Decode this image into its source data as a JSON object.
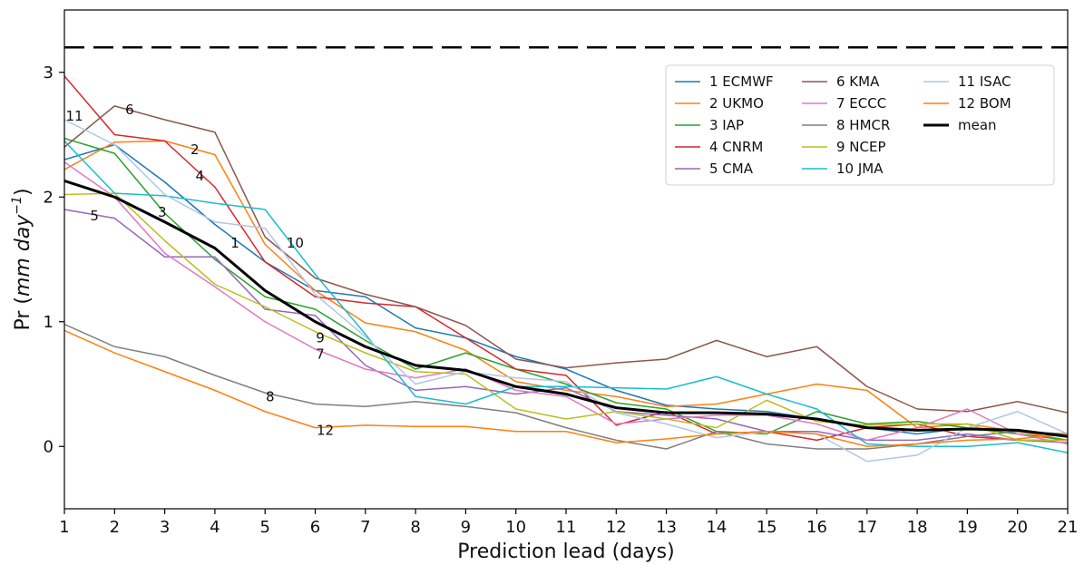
{
  "chart_data": {
    "type": "line",
    "xlabel": "Prediction lead (days)",
    "ylabel_prefix": "Pr (",
    "ylabel_unit_mm": "mm",
    "ylabel_unit_day": "day",
    "ylabel_exponent": "−1",
    "ylabel_suffix": ")",
    "xlim": [
      1,
      21
    ],
    "ylim": [
      -0.5,
      3.5
    ],
    "xticks": [
      1,
      2,
      3,
      4,
      5,
      6,
      7,
      8,
      9,
      10,
      11,
      12,
      13,
      14,
      15,
      16,
      17,
      18,
      19,
      20,
      21
    ],
    "yticks": [
      0,
      1,
      2,
      3
    ],
    "grid": false,
    "legend_position": "top-right",
    "reference_line": {
      "y": 3.2,
      "style": "dashed",
      "color": "#000000"
    },
    "x": [
      1,
      2,
      3,
      4,
      5,
      6,
      7,
      8,
      9,
      10,
      11,
      12,
      13,
      14,
      15,
      16,
      17,
      18,
      19,
      20,
      21
    ],
    "series": [
      {
        "name": "1 ECMWF",
        "label": "1",
        "color": "#1f77b4",
        "values": [
          2.3,
          2.42,
          2.12,
          1.78,
          1.48,
          1.25,
          1.2,
          0.95,
          0.87,
          0.72,
          0.62,
          0.45,
          0.33,
          0.3,
          0.28,
          0.22,
          0.15,
          0.1,
          0.15,
          0.12,
          0.05
        ]
      },
      {
        "name": "2 UKMO",
        "label": "2",
        "color": "#ff7f0e",
        "values": [
          2.22,
          2.44,
          2.45,
          2.34,
          1.62,
          1.25,
          0.99,
          0.92,
          0.77,
          0.52,
          0.45,
          0.4,
          0.32,
          0.34,
          0.42,
          0.5,
          0.45,
          0.15,
          0.18,
          0.12,
          0.05
        ]
      },
      {
        "name": "3 IAP",
        "label": "3",
        "color": "#2ca02c",
        "values": [
          2.47,
          2.35,
          1.87,
          1.5,
          1.2,
          1.1,
          0.85,
          0.62,
          0.75,
          0.62,
          0.5,
          0.35,
          0.3,
          0.12,
          0.1,
          0.28,
          0.18,
          0.2,
          0.15,
          0.1,
          0.05
        ]
      },
      {
        "name": "4 CNRM",
        "label": "4",
        "color": "#d62728",
        "values": [
          2.97,
          2.5,
          2.45,
          2.08,
          1.48,
          1.2,
          1.15,
          1.12,
          0.87,
          0.62,
          0.57,
          0.17,
          0.28,
          0.1,
          0.12,
          0.05,
          0.15,
          0.18,
          0.08,
          0.05,
          0.05
        ]
      },
      {
        "name": "5 CMA",
        "label": "5",
        "color": "#9467bd",
        "values": [
          1.9,
          1.83,
          1.52,
          1.52,
          1.1,
          1.05,
          0.65,
          0.45,
          0.48,
          0.42,
          0.47,
          0.28,
          0.25,
          0.22,
          0.12,
          0.12,
          0.05,
          0.05,
          0.1,
          0.05,
          0.03
        ]
      },
      {
        "name": "6 KMA",
        "label": "6",
        "color": "#8c564b",
        "values": [
          2.4,
          2.73,
          2.62,
          2.52,
          1.68,
          1.35,
          1.22,
          1.12,
          0.97,
          0.7,
          0.63,
          0.67,
          0.7,
          0.85,
          0.72,
          0.8,
          0.48,
          0.3,
          0.28,
          0.36,
          0.27
        ]
      },
      {
        "name": "7 ECCC",
        "label": "7",
        "color": "#e377c2",
        "values": [
          2.28,
          2.0,
          1.55,
          1.28,
          1.0,
          0.78,
          0.62,
          0.55,
          0.62,
          0.45,
          0.4,
          0.18,
          0.22,
          0.25,
          0.25,
          0.18,
          0.05,
          0.15,
          0.3,
          0.1,
          0.02
        ]
      },
      {
        "name": "8 HMCR",
        "label": "8",
        "color": "#7f7f7f",
        "values": [
          0.98,
          0.8,
          0.72,
          0.57,
          0.43,
          0.34,
          0.32,
          0.36,
          0.32,
          0.27,
          0.15,
          0.05,
          -0.02,
          0.12,
          0.02,
          -0.02,
          -0.02,
          0.02,
          0.08,
          0.12,
          0.1
        ]
      },
      {
        "name": "9 NCEP",
        "label": "9",
        "color": "#bcbd22",
        "values": [
          2.02,
          2.03,
          1.65,
          1.3,
          1.12,
          0.92,
          0.75,
          0.6,
          0.58,
          0.3,
          0.22,
          0.28,
          0.22,
          0.15,
          0.37,
          0.2,
          0.17,
          0.18,
          0.18,
          0.05,
          0.05
        ]
      },
      {
        "name": "10 JMA",
        "label": "10",
        "color": "#17becf",
        "values": [
          2.45,
          2.03,
          2.01,
          1.95,
          1.9,
          1.38,
          0.9,
          0.4,
          0.34,
          0.48,
          0.48,
          0.47,
          0.46,
          0.56,
          0.42,
          0.3,
          0.02,
          0.0,
          0.0,
          0.03,
          -0.05
        ]
      },
      {
        "name": "11 ISAC",
        "label": "11",
        "color": "#aec7e8",
        "values": [
          2.62,
          2.42,
          2.02,
          1.8,
          1.75,
          1.22,
          0.88,
          0.5,
          0.6,
          0.55,
          0.52,
          0.27,
          0.18,
          0.07,
          0.12,
          0.1,
          -0.12,
          -0.07,
          0.15,
          0.28,
          0.1
        ]
      },
      {
        "name": "12 BOM",
        "label": "12",
        "color": "#ff7f0e",
        "values": [
          0.93,
          0.75,
          0.6,
          0.45,
          0.28,
          0.15,
          0.17,
          0.16,
          0.16,
          0.12,
          0.12,
          0.03,
          0.06,
          0.1,
          0.12,
          0.1,
          0.0,
          0.02,
          0.05,
          0.06,
          0.1
        ]
      },
      {
        "name": "mean",
        "color": "#000000",
        "width": 3,
        "values": [
          2.13,
          2.0,
          1.8,
          1.59,
          1.25,
          1.0,
          0.8,
          0.65,
          0.61,
          0.48,
          0.42,
          0.31,
          0.27,
          0.27,
          0.26,
          0.22,
          0.15,
          0.13,
          0.14,
          0.13,
          0.08
        ]
      }
    ],
    "annotations": [
      {
        "text": "11",
        "x": 1.2,
        "y": 2.65
      },
      {
        "text": "6",
        "x": 2.3,
        "y": 2.7
      },
      {
        "text": "2",
        "x": 3.6,
        "y": 2.38
      },
      {
        "text": "4",
        "x": 3.7,
        "y": 2.17
      },
      {
        "text": "3",
        "x": 2.95,
        "y": 1.88
      },
      {
        "text": "5",
        "x": 1.6,
        "y": 1.85
      },
      {
        "text": "1",
        "x": 4.4,
        "y": 1.63
      },
      {
        "text": "10",
        "x": 5.6,
        "y": 1.63
      },
      {
        "text": "9",
        "x": 6.1,
        "y": 0.87
      },
      {
        "text": "7",
        "x": 6.1,
        "y": 0.74
      },
      {
        "text": "8",
        "x": 5.1,
        "y": 0.4
      },
      {
        "text": "12",
        "x": 6.2,
        "y": 0.13
      }
    ]
  }
}
